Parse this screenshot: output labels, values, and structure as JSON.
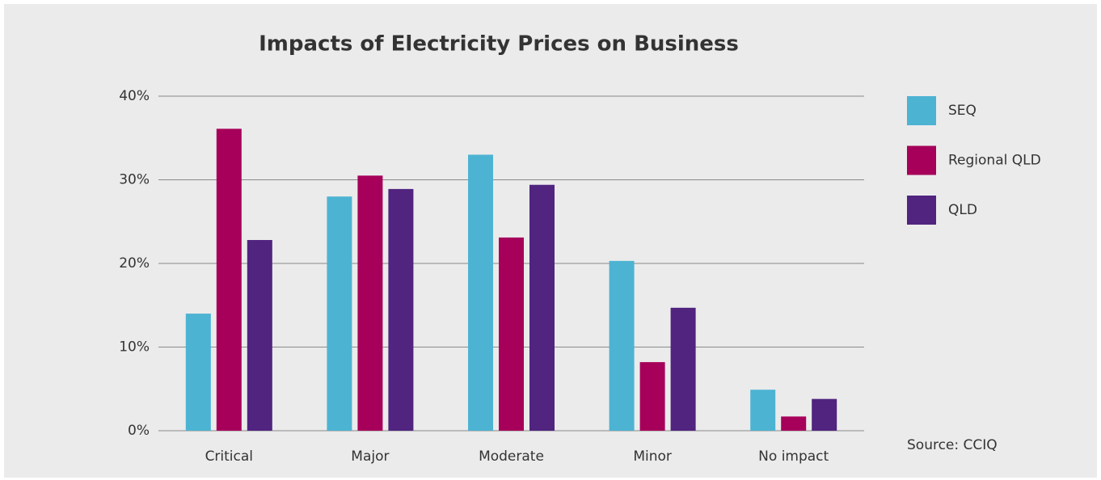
{
  "chart_data": {
    "type": "bar",
    "title": "Impacts of Electricity Prices on Business",
    "categories": [
      "Critical",
      "Major",
      "Moderate",
      "Minor",
      "No impact"
    ],
    "series": [
      {
        "name": "SEQ",
        "color": "#4db3d3",
        "values": [
          14,
          28,
          33,
          20.3,
          4.9
        ]
      },
      {
        "name": "Regional QLD",
        "color": "#a6005a",
        "values": [
          36.1,
          30.5,
          23.1,
          8.2,
          1.7
        ]
      },
      {
        "name": "QLD",
        "color": "#50247f",
        "values": [
          22.8,
          28.9,
          29.4,
          14.7,
          3.8
        ]
      }
    ],
    "ylim": [
      0,
      40
    ],
    "yticks": [
      {
        "value": 0,
        "label": "0%"
      },
      {
        "value": 10,
        "label": "10%"
      },
      {
        "value": 20,
        "label": "20%"
      },
      {
        "value": 30,
        "label": "30%"
      },
      {
        "value": 40,
        "label": "40%"
      }
    ],
    "grid": true,
    "legend": "right",
    "source": "Source: CCIQ"
  }
}
